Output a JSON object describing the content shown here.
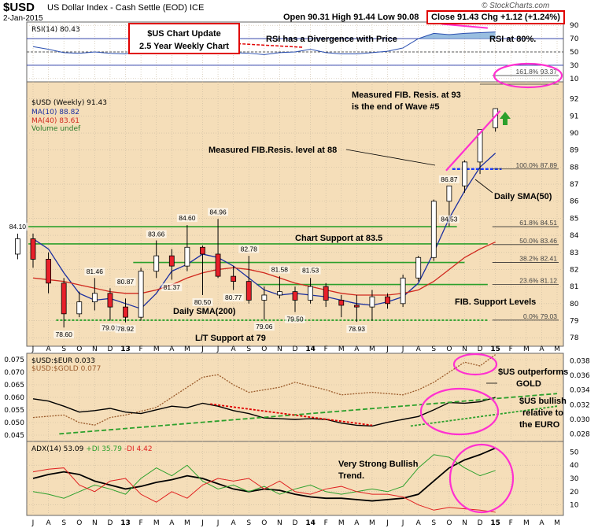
{
  "header": {
    "symbol": "$USD",
    "name": "US Dollar Index - Cash Settle (EOD) ICE",
    "date": "2-Jan-2015",
    "ohlc": "Open 90.31  High 91.44  Low 90.08",
    "close": "Close 91.43  Chg +1.12 (+1.24%)",
    "arrow": "▲",
    "brand": "© StockCharts.com"
  },
  "colors": {
    "panel_bg": "#f5deb9",
    "rsi_bg": "#ffffff",
    "grid": "#c8b9a0",
    "up_candle": "#ffffff",
    "down_candle": "#e8202a",
    "ma10": "#1a2ea0",
    "ma40": "#d0281e",
    "green_line": "#2ca02c",
    "fib_blue": "#1a3aff",
    "magenta": "#ff30d0",
    "arrow_green": "#2ca02c"
  },
  "legends": {
    "rsi": "RSI(14) 80.43",
    "price": "$USD (Weekly) 91.43",
    "ma10": "MA(10) 88.82",
    "ma40": "MA(40) 83.61",
    "volume": "Volume undef",
    "ratio1": "$USD:$EUR 0.033",
    "ratio2": "$USD:$GOLD 0.077",
    "adx": "ADX(14) 53.09",
    "pdi": "+DI 35.79",
    "mdi": "-DI 4.42"
  },
  "annotations": {
    "title_box_line1": "$US Chart Update",
    "title_box_line2": "2.5 Year Weekly Chart",
    "rsi_divergence": "RSI has a Divergence with Price",
    "rsi_80": "RSI at 80%.",
    "fib93_line1": "Measured FIB. Resis. at 93",
    "fib93_line2": "is the end of Wave #5",
    "fib88": "Measured FIB.Resis. level at 88",
    "daily_sma50": "Daily SMA(50)",
    "chart_support": "Chart Support at 83.5",
    "daily_sma200": "Daily SMA(200)",
    "lt_support": "L/T Support at 79",
    "fib_support": "FIB. Support Levels",
    "outperforms_line1": "$US outperforms",
    "outperforms_line2": "GOLD",
    "bullish_line1": "$US bullish",
    "bullish_line2": "relative to",
    "bullish_line3": "the EURO",
    "adx_line1": "Very Strong Bullish",
    "adx_line2": "Trend."
  },
  "chart_data": [
    {
      "type": "line",
      "title": "RSI(14) 80.43",
      "ylim": [
        5,
        95
      ],
      "yticks": [
        10,
        30,
        50,
        70,
        90
      ],
      "reference_levels": [
        30,
        50,
        70
      ],
      "x": [
        "2012-07",
        "2012-08",
        "2012-09",
        "2012-10",
        "2012-11",
        "2012-12",
        "2013-01",
        "2013-02",
        "2013-03",
        "2013-04",
        "2013-05",
        "2013-06",
        "2013-07",
        "2013-08",
        "2013-09",
        "2013-10",
        "2013-11",
        "2013-12",
        "2014-01",
        "2014-02",
        "2014-03",
        "2014-04",
        "2014-05",
        "2014-06",
        "2014-07",
        "2014-08",
        "2014-09",
        "2014-10",
        "2014-11",
        "2014-12",
        "2015-01"
      ],
      "series": [
        {
          "name": "RSI(14)",
          "values": [
            58,
            54,
            49,
            48,
            50,
            48,
            47,
            52,
            56,
            55,
            58,
            51,
            50,
            49,
            48,
            46,
            49,
            50,
            54,
            49,
            47,
            47,
            49,
            51,
            56,
            70,
            78,
            76,
            78,
            79,
            80
          ]
        }
      ]
    },
    {
      "type": "candlestick",
      "title": "$USD (Weekly) 91.43",
      "ylim": [
        77.5,
        93
      ],
      "yticks": [
        78,
        79,
        80,
        81,
        82,
        83,
        84,
        85,
        86,
        87,
        88,
        89,
        90,
        91,
        92
      ],
      "x_ticks": [
        "J",
        "A",
        "S",
        "O",
        "N",
        "D",
        "13",
        "F",
        "M",
        "A",
        "M",
        "J",
        "J",
        "A",
        "S",
        "O",
        "N",
        "D",
        "14",
        "F",
        "M",
        "A",
        "M",
        "J",
        "J",
        "A",
        "S",
        "O",
        "N",
        "D",
        "15",
        "F",
        "M",
        "A",
        "M"
      ],
      "candles": [
        {
          "m": "2012-06",
          "o": 82.9,
          "h": 84.1,
          "l": 82.6,
          "c": 83.8
        },
        {
          "m": "2012-07",
          "o": 83.8,
          "h": 84.1,
          "l": 82.1,
          "c": 82.6
        },
        {
          "m": "2012-08",
          "o": 82.6,
          "h": 83.0,
          "l": 80.6,
          "c": 81.2
        },
        {
          "m": "2012-09",
          "o": 81.2,
          "h": 81.5,
          "l": 78.6,
          "c": 79.4
        },
        {
          "m": "2012-10",
          "o": 79.4,
          "h": 80.7,
          "l": 79.2,
          "c": 80.1
        },
        {
          "m": "2012-11",
          "o": 80.1,
          "h": 81.5,
          "l": 79.6,
          "c": 80.6
        },
        {
          "m": "2012-12",
          "o": 80.6,
          "h": 80.9,
          "l": 79.0,
          "c": 79.8
        },
        {
          "m": "2013-01",
          "o": 79.8,
          "h": 80.3,
          "l": 78.9,
          "c": 79.2
        },
        {
          "m": "2013-02",
          "o": 79.2,
          "h": 82.1,
          "l": 79.0,
          "c": 81.9
        },
        {
          "m": "2013-03",
          "o": 81.9,
          "h": 83.7,
          "l": 81.5,
          "c": 82.8
        },
        {
          "m": "2013-04",
          "o": 82.8,
          "h": 83.2,
          "l": 81.4,
          "c": 82.2
        },
        {
          "m": "2013-05",
          "o": 82.2,
          "h": 84.6,
          "l": 81.9,
          "c": 83.3
        },
        {
          "m": "2013-06",
          "o": 83.3,
          "h": 83.4,
          "l": 80.5,
          "c": 82.9
        },
        {
          "m": "2013-07",
          "o": 82.9,
          "h": 84.96,
          "l": 81.5,
          "c": 81.6
        },
        {
          "m": "2013-08",
          "o": 81.6,
          "h": 82.2,
          "l": 80.8,
          "c": 81.3
        },
        {
          "m": "2013-09",
          "o": 81.3,
          "h": 82.8,
          "l": 80.0,
          "c": 80.2
        },
        {
          "m": "2013-10",
          "o": 80.2,
          "h": 81.0,
          "l": 79.06,
          "c": 80.5
        },
        {
          "m": "2013-11",
          "o": 80.5,
          "h": 81.6,
          "l": 80.3,
          "c": 80.7
        },
        {
          "m": "2013-12",
          "o": 80.7,
          "h": 81.0,
          "l": 79.5,
          "c": 80.2
        },
        {
          "m": "2014-01",
          "o": 80.2,
          "h": 81.5,
          "l": 80.0,
          "c": 81.0
        },
        {
          "m": "2014-02",
          "o": 81.0,
          "h": 81.2,
          "l": 79.8,
          "c": 80.2
        },
        {
          "m": "2014-03",
          "o": 80.2,
          "h": 80.5,
          "l": 79.2,
          "c": 79.9
        },
        {
          "m": "2014-04",
          "o": 79.9,
          "h": 80.5,
          "l": 78.93,
          "c": 79.8
        },
        {
          "m": "2014-05",
          "o": 79.8,
          "h": 80.8,
          "l": 79.0,
          "c": 80.4
        },
        {
          "m": "2014-06",
          "o": 80.4,
          "h": 80.6,
          "l": 79.7,
          "c": 80.0
        },
        {
          "m": "2014-07",
          "o": 80.0,
          "h": 81.7,
          "l": 79.8,
          "c": 81.5
        },
        {
          "m": "2014-08",
          "o": 81.5,
          "h": 82.8,
          "l": 81.3,
          "c": 82.7
        },
        {
          "m": "2014-09",
          "o": 82.7,
          "h": 86.1,
          "l": 82.5,
          "c": 86.0
        },
        {
          "m": "2014-10",
          "o": 86.0,
          "h": 86.87,
          "l": 84.53,
          "c": 86.9
        },
        {
          "m": "2014-11",
          "o": 86.9,
          "h": 88.4,
          "l": 86.5,
          "c": 88.3
        },
        {
          "m": "2014-12",
          "o": 88.3,
          "h": 90.2,
          "l": 87.6,
          "c": 90.2
        },
        {
          "m": "2015-01",
          "o": 90.31,
          "h": 91.44,
          "l": 90.08,
          "c": 91.43
        }
      ],
      "series": [
        {
          "name": "MA(10) 88.82",
          "values": [
            83.8,
            83.2,
            81.8,
            80.6,
            80.2,
            80.3,
            80.0,
            79.7,
            80.6,
            81.9,
            82.3,
            82.9,
            82.7,
            82.2,
            81.5,
            80.8,
            80.5,
            80.6,
            80.5,
            80.4,
            80.2,
            80.0,
            79.9,
            80.1,
            80.4,
            81.2,
            83.0,
            85.0,
            86.6,
            88.0,
            88.82
          ]
        },
        {
          "name": "MA(40) 83.61",
          "values": [
            81.5,
            81.4,
            81.3,
            81.1,
            80.9,
            80.7,
            80.6,
            80.6,
            80.8,
            81.1,
            81.5,
            81.8,
            82.0,
            82.1,
            82.0,
            81.8,
            81.5,
            81.2,
            81.0,
            80.8,
            80.6,
            80.5,
            80.5,
            80.5,
            80.6,
            80.8,
            81.3,
            82.0,
            82.7,
            83.2,
            83.61
          ]
        }
      ],
      "price_labels": [
        {
          "text": "84.10",
          "x": "2012-06",
          "y": 84.1
        },
        {
          "text": "78.60",
          "x": "2012-09",
          "y": 78.6
        },
        {
          "text": "81.46",
          "x": "2012-11",
          "y": 81.46
        },
        {
          "text": "79.01",
          "x": "2012-12",
          "y": 79.01
        },
        {
          "text": "80.87",
          "x": "2013-01",
          "y": 80.87
        },
        {
          "text": "78.92",
          "x": "2013-01",
          "y": 78.92
        },
        {
          "text": "83.66",
          "x": "2013-03",
          "y": 83.66
        },
        {
          "text": "81.37",
          "x": "2013-04",
          "y": 81.37
        },
        {
          "text": "84.60",
          "x": "2013-05",
          "y": 84.6
        },
        {
          "text": "80.50",
          "x": "2013-06",
          "y": 80.5
        },
        {
          "text": "84.96",
          "x": "2013-07",
          "y": 84.96
        },
        {
          "text": "80.77",
          "x": "2013-08",
          "y": 80.77
        },
        {
          "text": "82.78",
          "x": "2013-09",
          "y": 82.78
        },
        {
          "text": "79.06",
          "x": "2013-10",
          "y": 79.06
        },
        {
          "text": "81.58",
          "x": "2013-11",
          "y": 81.58
        },
        {
          "text": "79.50",
          "x": "2013-12",
          "y": 79.5
        },
        {
          "text": "81.53",
          "x": "2014-01",
          "y": 81.53
        },
        {
          "text": "78.93",
          "x": "2014-04",
          "y": 78.93
        },
        {
          "text": "86.87",
          "x": "2014-10",
          "y": 86.87
        },
        {
          "text": "84.53",
          "x": "2014-10",
          "y": 84.53
        }
      ],
      "fib_levels": [
        {
          "text": "161.8% 93.37",
          "value": 93.37
        },
        {
          "text": "100.0% 87.89",
          "value": 87.89
        },
        {
          "text": "61.8% 84.51",
          "value": 84.51
        },
        {
          "text": "50.0% 83.46",
          "value": 83.46
        },
        {
          "text": "38.2% 82.41",
          "value": 82.41
        },
        {
          "text": "23.6% 81.12",
          "value": 81.12
        },
        {
          "text": "0.0% 79.03",
          "value": 79.03
        }
      ]
    },
    {
      "type": "line",
      "title": "$USD:$EUR 0.033",
      "ylim": [
        0.0425,
        0.0775
      ],
      "yticks": [
        0.045,
        0.05,
        0.055,
        0.06,
        0.065,
        0.07,
        0.075
      ],
      "y2lim": [
        0.027,
        0.039
      ],
      "y2ticks": [
        0.028,
        0.03,
        0.032,
        0.034,
        0.036,
        0.038
      ],
      "series": [
        {
          "name": "$USD:$EUR 0.033",
          "axis": "right",
          "values": [
            0.0328,
            0.0325,
            0.0318,
            0.031,
            0.0312,
            0.0315,
            0.031,
            0.0308,
            0.0313,
            0.0318,
            0.0316,
            0.0322,
            0.0318,
            0.0312,
            0.0308,
            0.0302,
            0.0301,
            0.03,
            0.0301,
            0.03,
            0.0295,
            0.0292,
            0.0291,
            0.0296,
            0.03,
            0.0304,
            0.0313,
            0.0323,
            0.0322,
            0.0324,
            0.033
          ]
        },
        {
          "name": "$USD:$GOLD 0.077",
          "axis": "left",
          "values": [
            0.052,
            0.0525,
            0.053,
            0.05,
            0.049,
            0.052,
            0.053,
            0.0545,
            0.056,
            0.06,
            0.064,
            0.068,
            0.069,
            0.065,
            0.062,
            0.063,
            0.064,
            0.066,
            0.0645,
            0.063,
            0.061,
            0.0615,
            0.062,
            0.0615,
            0.061,
            0.063,
            0.066,
            0.07,
            0.074,
            0.0725,
            0.077
          ]
        }
      ]
    },
    {
      "type": "line",
      "title": "ADX(14) 53.09",
      "ylim": [
        2,
        58
      ],
      "yticks": [
        10,
        20,
        30,
        40,
        50
      ],
      "series": [
        {
          "name": "ADX(14) 53.09",
          "values": [
            30,
            33,
            35,
            33,
            28,
            25,
            22,
            24,
            27,
            29,
            32,
            30,
            26,
            22,
            20,
            22,
            21,
            18,
            16,
            15,
            15,
            14,
            13,
            14,
            15,
            18,
            28,
            38,
            44,
            48,
            53
          ]
        },
        {
          "name": "+DI 35.79",
          "values": [
            20,
            18,
            15,
            20,
            25,
            22,
            18,
            30,
            38,
            32,
            40,
            28,
            22,
            25,
            20,
            24,
            18,
            22,
            25,
            20,
            18,
            20,
            22,
            20,
            24,
            38,
            48,
            46,
            38,
            32,
            36
          ]
        },
        {
          "name": "-DI 4.42",
          "values": [
            35,
            37,
            38,
            25,
            20,
            28,
            30,
            18,
            12,
            20,
            15,
            25,
            30,
            28,
            30,
            22,
            28,
            20,
            18,
            22,
            24,
            20,
            18,
            18,
            16,
            10,
            6,
            8,
            7,
            6,
            4.42
          ]
        }
      ]
    }
  ]
}
